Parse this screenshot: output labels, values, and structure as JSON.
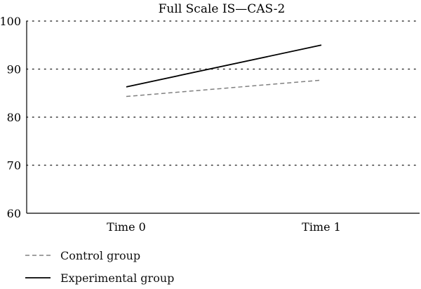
{
  "chart_data": {
    "type": "line",
    "title": "Full Scale IS—CAS-2",
    "xlabel": "",
    "ylabel": "",
    "categories": [
      "Time 0",
      "Time 1"
    ],
    "ylim": [
      60,
      100
    ],
    "yticks": [
      60,
      70,
      80,
      90,
      100
    ],
    "grid": "horizontal-dotted",
    "legend_position": "bottom-left",
    "series": [
      {
        "name": "Control group",
        "values": [
          84.3,
          87.7
        ],
        "style": "dashed",
        "color": "#808080"
      },
      {
        "name": "Experimental group",
        "values": [
          86.3,
          95.0
        ],
        "style": "solid",
        "color": "#000000"
      }
    ]
  }
}
